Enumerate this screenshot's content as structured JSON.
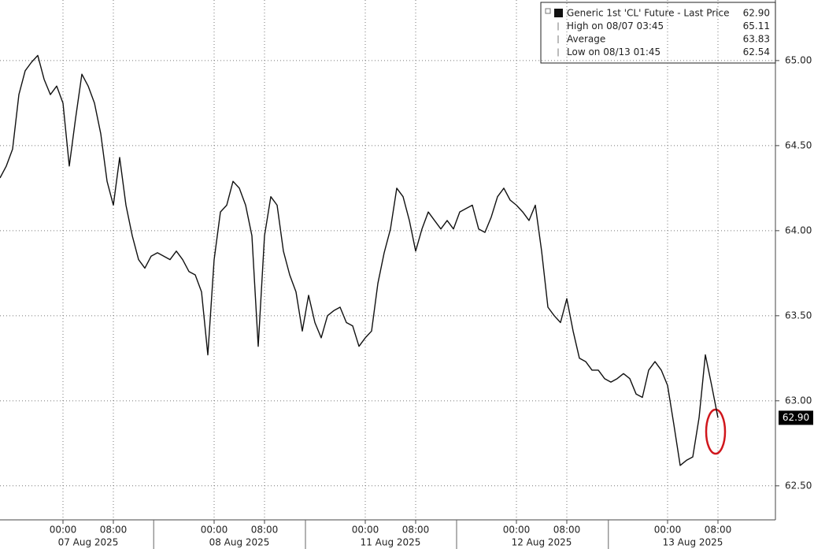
{
  "chart_data": {
    "type": "line",
    "categories": [
      null,
      null,
      null,
      null,
      null,
      null,
      null,
      null,
      null,
      null,
      "00:00",
      null,
      null,
      null,
      null,
      null,
      null,
      null,
      "08:00",
      null,
      null,
      null,
      null,
      null,
      null,
      null,
      null,
      null,
      null,
      null,
      null,
      null,
      null,
      null,
      "00:00",
      null,
      null,
      null,
      null,
      null,
      null,
      null,
      "08:00",
      null,
      null,
      null,
      null,
      null,
      null,
      null,
      null,
      null,
      null,
      null,
      null,
      null,
      null,
      null,
      "00:00",
      null,
      null,
      null,
      null,
      null,
      null,
      null,
      "08:00",
      null,
      null,
      null,
      null,
      null,
      null,
      null,
      null,
      null,
      null,
      null,
      null,
      null,
      null,
      null,
      "00:00",
      null,
      null,
      null,
      null,
      null,
      null,
      null,
      "08:00",
      null,
      null,
      null,
      null,
      null,
      null,
      null,
      null,
      null,
      null,
      null,
      null,
      null,
      null,
      null,
      "00:00",
      null,
      null,
      null,
      null,
      null,
      null,
      null,
      "08:00"
    ],
    "date_labels": [
      "07 Aug 2025",
      "08 Aug 2025",
      "11 Aug 2025",
      "12 Aug 2025",
      "13 Aug 2025"
    ],
    "series": [
      {
        "color": "#111111",
        "values": [
          64.31,
          64.38,
          64.48,
          64.8,
          64.94,
          64.99,
          65.03,
          64.89,
          64.8,
          64.85,
          64.75,
          64.38,
          64.66,
          64.92,
          64.85,
          64.75,
          64.57,
          64.29,
          64.15,
          64.43,
          64.15,
          63.97,
          63.83,
          63.78,
          63.85,
          63.87,
          63.85,
          63.83,
          63.88,
          63.83,
          63.76,
          63.74,
          63.64,
          63.27,
          63.83,
          64.11,
          64.15,
          64.29,
          64.25,
          64.15,
          63.97,
          63.32,
          63.97,
          64.2,
          64.15,
          63.88,
          63.74,
          63.64,
          63.41,
          63.62,
          63.46,
          63.37,
          63.5,
          63.53,
          63.55,
          63.46,
          63.44,
          63.32,
          63.37,
          63.41,
          63.69,
          63.87,
          64.01,
          64.25,
          64.2,
          64.06,
          63.88,
          64.01,
          64.11,
          64.06,
          64.01,
          64.06,
          64.01,
          64.11,
          64.13,
          64.15,
          64.01,
          63.99,
          64.08,
          64.2,
          64.25,
          64.18,
          64.15,
          64.11,
          64.06,
          64.15,
          63.88,
          63.55,
          63.5,
          63.46,
          63.6,
          63.41,
          63.25,
          63.23,
          63.18,
          63.18,
          63.13,
          63.11,
          63.13,
          63.16,
          63.13,
          63.04,
          63.02,
          63.18,
          63.23,
          63.18,
          63.09,
          62.86,
          62.62,
          62.65,
          62.67,
          62.9,
          63.27,
          63.09,
          62.9
        ]
      }
    ],
    "legend": [
      {
        "text": "Generic 1st 'CL' Future - Last Price",
        "figure": {
          "value": 62.9,
          "label": "62.90"
        }
      },
      {
        "text": "High on 08/07 03:45",
        "figure": {
          "value": 65.11,
          "label": "65.11"
        }
      },
      {
        "text": "Average",
        "figure": {
          "value": 63.83,
          "label": "63.83"
        }
      },
      {
        "text": "Low on 08/13 01:45",
        "figure": {
          "value": 62.54,
          "label": "62.54"
        }
      }
    ],
    "ylim": [
      62.3,
      65.356
    ],
    "yticks": [
      {
        "value": 62.5,
        "label": "62.50"
      },
      {
        "value": 63,
        "label": "63.00"
      },
      {
        "value": 63.5,
        "label": "63.50"
      },
      {
        "value": 64,
        "label": "64.00"
      },
      {
        "value": 64.5,
        "label": "64.50"
      },
      {
        "value": 65,
        "label": "65.00"
      }
    ],
    "grid": true
  }
}
